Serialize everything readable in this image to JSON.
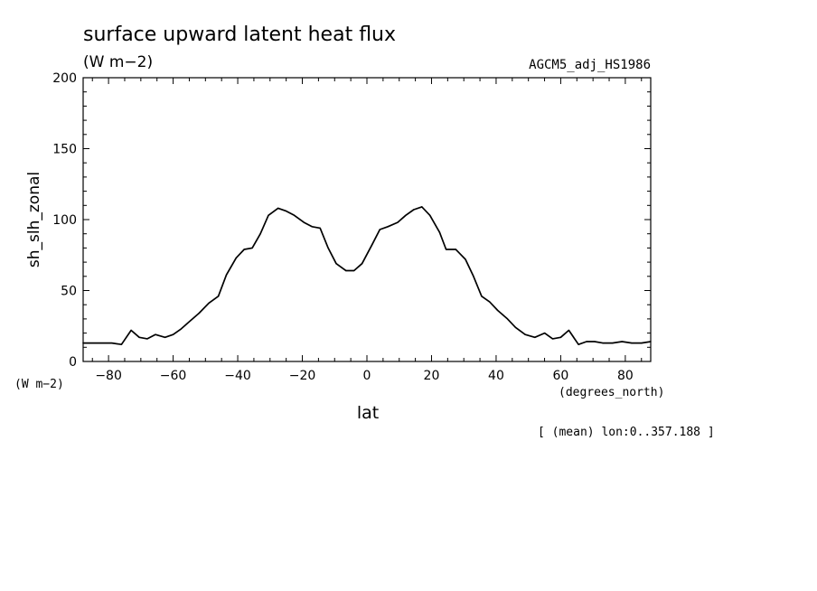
{
  "chart_data": {
    "type": "line",
    "title": "surface upward latent heat flux",
    "units": "(W m−2)",
    "dataset": "AGCM5_adj_HS1986",
    "ylabel": "sh_slh_zonal",
    "yunits": "(W m−2)",
    "xlabel": "lat",
    "xunits": "(degrees_north)",
    "footnote": "[ (mean) lon:0..357.188 ]",
    "xlim": [
      -87.864,
      87.864
    ],
    "ylim": [
      0,
      200
    ],
    "xticks": [
      -80,
      -60,
      -40,
      -20,
      0,
      20,
      40,
      60,
      80
    ],
    "xtick_labels": [
      "−80",
      "−60",
      "−40",
      "−20",
      "0",
      "20",
      "40",
      "60",
      "80"
    ],
    "yticks": [
      0,
      50,
      100,
      150,
      200
    ],
    "ytick_labels": [
      "0",
      "50",
      "100",
      "150",
      "200"
    ],
    "x": [
      -87.9,
      -85.0,
      -82.0,
      -79.0,
      -76.0,
      -73.0,
      -70.5,
      -68.0,
      -65.5,
      -62.5,
      -60.0,
      -57.5,
      -55.0,
      -52.0,
      -49.0,
      -46.0,
      -43.5,
      -40.5,
      -38.0,
      -35.5,
      -33.0,
      -30.5,
      -27.5,
      -25.0,
      -22.5,
      -19.5,
      -17.0,
      -14.5,
      -12.0,
      -9.5,
      -6.5,
      -4.0,
      -1.5,
      1.5,
      4.0,
      6.5,
      9.5,
      12.0,
      14.5,
      17.0,
      19.5,
      22.5,
      24.5,
      27.5,
      30.5,
      33.0,
      35.5,
      38.0,
      40.5,
      43.5,
      46.0,
      49.0,
      52.0,
      55.0,
      57.5,
      60.0,
      62.5,
      65.5,
      68.0,
      70.5,
      73.0,
      76.0,
      79.0,
      82.0,
      85.0,
      87.9
    ],
    "y": [
      13,
      13,
      13,
      13,
      12,
      22,
      17,
      16,
      19,
      17,
      19,
      23,
      28,
      34,
      41,
      46,
      61,
      73,
      79,
      80,
      90,
      103,
      108,
      106,
      103,
      98,
      95,
      94,
      80,
      69,
      64,
      64,
      69,
      82,
      93,
      95,
      98,
      103,
      107,
      109,
      103,
      91,
      79,
      79,
      72,
      60,
      46,
      42,
      36,
      30,
      24,
      19,
      17,
      20,
      16,
      17,
      22,
      12,
      14,
      14,
      13,
      13,
      14,
      13,
      13,
      14
    ]
  }
}
